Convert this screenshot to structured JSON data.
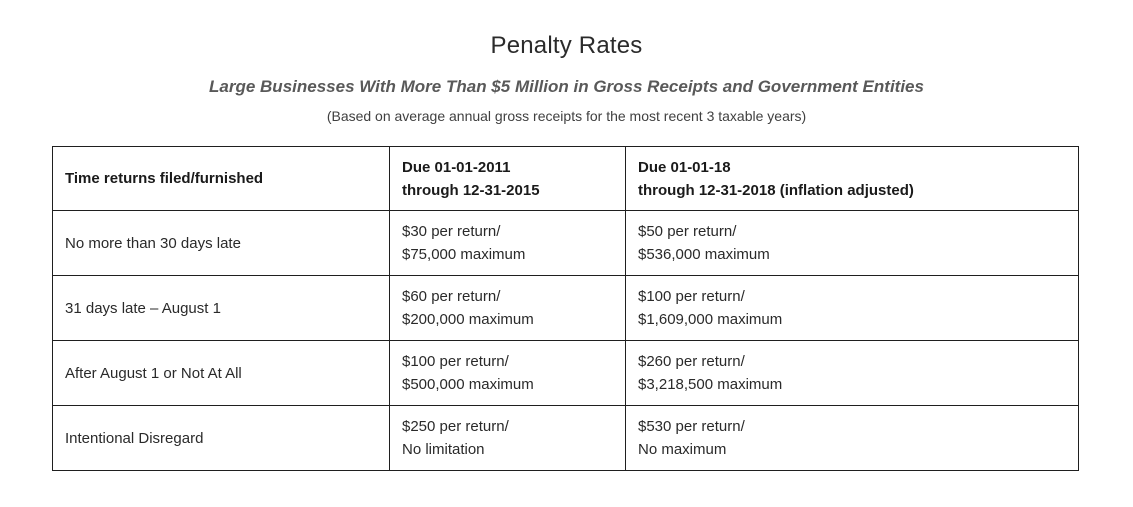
{
  "header": {
    "title": "Penalty Rates",
    "subtitle": "Large Businesses With More Than $5 Million in Gross Receipts and Government Entities",
    "note": "(Based on average annual gross receipts for the most recent 3 taxable years)"
  },
  "table": {
    "header": [
      {
        "lines": [
          "Time returns filed/furnished"
        ]
      },
      {
        "lines": [
          "Due 01-01-2011",
          "through 12-31-2015"
        ]
      },
      {
        "lines": [
          "Due 01-01-18",
          "through 12-31-2018 (inflation adjusted)"
        ]
      }
    ],
    "rows": [
      {
        "cells": [
          {
            "lines": [
              "No more than 30 days late"
            ]
          },
          {
            "lines": [
              "$30 per return/",
              "$75,000 maximum"
            ]
          },
          {
            "lines": [
              "$50 per return/",
              "$536,000 maximum"
            ]
          }
        ]
      },
      {
        "cells": [
          {
            "lines": [
              "31 days late – August 1"
            ]
          },
          {
            "lines": [
              "$60 per return/",
              "$200,000 maximum"
            ]
          },
          {
            "lines": [
              "$100 per return/",
              "$1,609,000 maximum"
            ]
          }
        ]
      },
      {
        "cells": [
          {
            "lines": [
              "After August 1 or Not At All"
            ]
          },
          {
            "lines": [
              "$100 per return/",
              "$500,000 maximum"
            ]
          },
          {
            "lines": [
              "$260 per return/",
              "$3,218,500 maximum"
            ]
          }
        ]
      },
      {
        "cells": [
          {
            "lines": [
              "Intentional Disregard"
            ]
          },
          {
            "lines": [
              "$250 per return/",
              "No limitation"
            ]
          },
          {
            "lines": [
              "$530 per return/",
              "No maximum"
            ]
          }
        ]
      }
    ]
  },
  "colors": {
    "title_text": "#2b2b2b",
    "subtitle_text": "#595959",
    "body_text": "#2a2a2a",
    "table_border": "#1f1f1f",
    "background": "#ffffff"
  }
}
